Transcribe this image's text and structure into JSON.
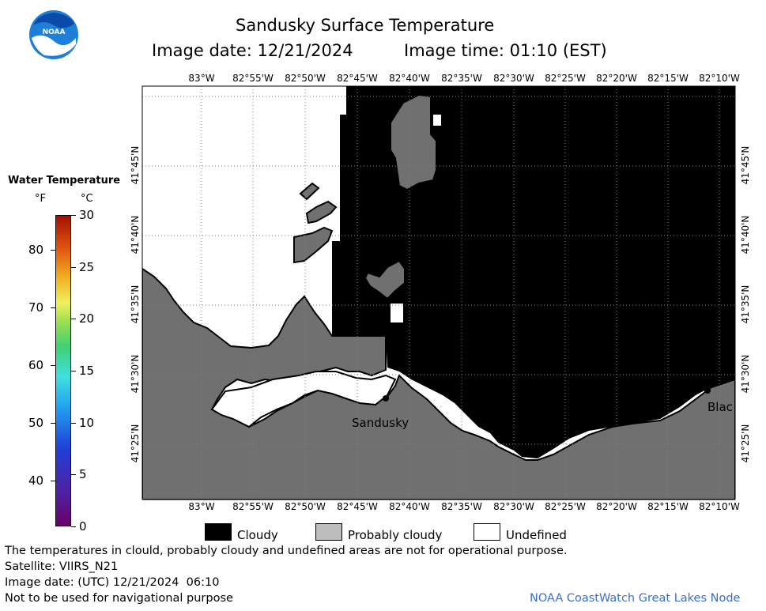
{
  "header": {
    "title": "Sandusky Surface Temperature",
    "date_text": "Image date: 12/21/2024",
    "time_text": "Image time: 01:10 (EST)",
    "logo_text": "NOAA"
  },
  "legend": {
    "title": "Water Temperature",
    "unit_f": "°F",
    "unit_c": "°C",
    "f_ticks": [
      "80",
      "70",
      "60",
      "50",
      "40"
    ],
    "c_ticks": [
      "30",
      "25",
      "20",
      "15",
      "10",
      "5",
      "0"
    ]
  },
  "map": {
    "lon_labels": [
      "83°W",
      "82°55'W",
      "82°50'W",
      "82°45'W",
      "82°40'W",
      "82°35'W",
      "82°30'W",
      "82°25'W",
      "82°20'W",
      "82°15'W",
      "82°10'W"
    ],
    "lat_labels": [
      "41°45'N",
      "41°40'N",
      "41°35'N",
      "41°30'N",
      "41°25'N"
    ],
    "places": [
      {
        "name": "Sandusky"
      },
      {
        "name": "Blac"
      }
    ],
    "colors": {
      "cloudy": "#000000",
      "probably_cloudy": "#707070",
      "undefined": "#ffffff",
      "land": "#707070"
    }
  },
  "key": {
    "cloudy": "Cloudy",
    "probably_cloudy": "Probably cloudy",
    "undefined": "Undefined"
  },
  "footer": {
    "disclaimer": "The temperatures in clould, probably cloudy and undefined areas are not for operational purpose.",
    "satellite": "Satellite: VIIRS_N21",
    "utc_date": "Image date: (UTC) 12/21/2024  06:10",
    "nav_warning": "Not to be used for navigational purpose",
    "credit": "NOAA CoastWatch Great Lakes Node"
  }
}
